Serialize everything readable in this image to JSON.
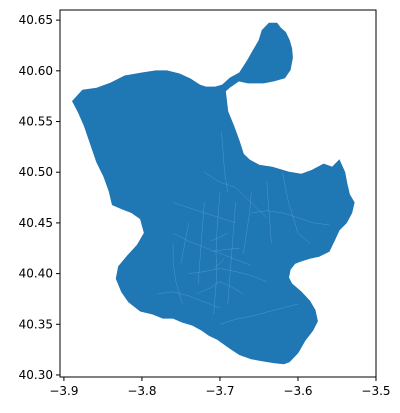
{
  "chart_data": {
    "type": "map",
    "title": "",
    "xlabel": "",
    "ylabel": "",
    "xlim": [
      -3.905,
      -3.5
    ],
    "ylim": [
      40.298,
      40.66
    ],
    "x_ticks": [
      "-3.9",
      "-3.8",
      "-3.7",
      "-3.6",
      "-3.5"
    ],
    "y_ticks": [
      "40.30",
      "40.35",
      "40.40",
      "40.45",
      "40.50",
      "40.55",
      "40.60",
      "40.65"
    ],
    "fill_color": "#1f77b4",
    "boundary_color": "#5aa0d0",
    "grid": false,
    "legend": "none",
    "outline": [
      [
        -3.889,
        40.57
      ],
      [
        -3.876,
        40.581
      ],
      [
        -3.858,
        40.583
      ],
      [
        -3.84,
        40.588
      ],
      [
        -3.822,
        40.595
      ],
      [
        -3.8,
        40.598
      ],
      [
        -3.782,
        40.6
      ],
      [
        -3.768,
        40.6
      ],
      [
        -3.752,
        40.597
      ],
      [
        -3.738,
        40.592
      ],
      [
        -3.726,
        40.586
      ],
      [
        -3.718,
        40.584
      ],
      [
        -3.706,
        40.584
      ],
      [
        -3.697,
        40.586
      ],
      [
        -3.687,
        40.593
      ],
      [
        -3.675,
        40.598
      ],
      [
        -3.665,
        40.61
      ],
      [
        -3.656,
        40.622
      ],
      [
        -3.65,
        40.63
      ],
      [
        -3.646,
        40.64
      ],
      [
        -3.637,
        40.647
      ],
      [
        -3.627,
        40.647
      ],
      [
        -3.622,
        40.642
      ],
      [
        -3.616,
        40.638
      ],
      [
        -3.611,
        40.63
      ],
      [
        -3.608,
        40.622
      ],
      [
        -3.607,
        40.613
      ],
      [
        -3.61,
        40.601
      ],
      [
        -3.617,
        40.593
      ],
      [
        -3.631,
        40.59
      ],
      [
        -3.644,
        40.588
      ],
      [
        -3.664,
        40.588
      ],
      [
        -3.676,
        40.59
      ],
      [
        -3.687,
        40.584
      ],
      [
        -3.693,
        40.58
      ],
      [
        -3.69,
        40.56
      ],
      [
        -3.682,
        40.545
      ],
      [
        -3.675,
        40.53
      ],
      [
        -3.67,
        40.518
      ],
      [
        -3.662,
        40.512
      ],
      [
        -3.65,
        40.507
      ],
      [
        -3.633,
        40.505
      ],
      [
        -3.611,
        40.5
      ],
      [
        -3.596,
        40.498
      ],
      [
        -3.582,
        40.502
      ],
      [
        -3.567,
        40.508
      ],
      [
        -3.556,
        40.505
      ],
      [
        -3.547,
        40.512
      ],
      [
        -3.54,
        40.5
      ],
      [
        -3.537,
        40.488
      ],
      [
        -3.534,
        40.478
      ],
      [
        -3.528,
        40.47
      ],
      [
        -3.531,
        40.46
      ],
      [
        -3.538,
        40.45
      ],
      [
        -3.547,
        40.443
      ],
      [
        -3.553,
        40.433
      ],
      [
        -3.56,
        40.422
      ],
      [
        -3.573,
        40.417
      ],
      [
        -3.585,
        40.415
      ],
      [
        -3.597,
        40.412
      ],
      [
        -3.604,
        40.41
      ],
      [
        -3.61,
        40.404
      ],
      [
        -3.612,
        40.396
      ],
      [
        -3.608,
        40.39
      ],
      [
        -3.596,
        40.382
      ],
      [
        -3.585,
        40.373
      ],
      [
        -3.578,
        40.364
      ],
      [
        -3.575,
        40.353
      ],
      [
        -3.581,
        40.344
      ],
      [
        -3.591,
        40.334
      ],
      [
        -3.6,
        40.322
      ],
      [
        -3.611,
        40.313
      ],
      [
        -3.618,
        40.311
      ],
      [
        -3.63,
        40.312
      ],
      [
        -3.646,
        40.314
      ],
      [
        -3.66,
        40.316
      ],
      [
        -3.675,
        40.32
      ],
      [
        -3.685,
        40.325
      ],
      [
        -3.694,
        40.33
      ],
      [
        -3.703,
        40.335
      ],
      [
        -3.714,
        40.339
      ],
      [
        -3.723,
        40.344
      ],
      [
        -3.735,
        40.349
      ],
      [
        -3.748,
        40.352
      ],
      [
        -3.76,
        40.356
      ],
      [
        -3.773,
        40.356
      ],
      [
        -3.786,
        40.36
      ],
      [
        -3.802,
        40.363
      ],
      [
        -3.817,
        40.372
      ],
      [
        -3.826,
        40.382
      ],
      [
        -3.833,
        40.395
      ],
      [
        -3.83,
        40.407
      ],
      [
        -3.818,
        40.418
      ],
      [
        -3.806,
        40.428
      ],
      [
        -3.797,
        40.44
      ],
      [
        -3.802,
        40.454
      ],
      [
        -3.813,
        40.46
      ],
      [
        -3.826,
        40.464
      ],
      [
        -3.838,
        40.468
      ],
      [
        -3.842,
        40.481
      ],
      [
        -3.849,
        40.496
      ],
      [
        -3.858,
        40.51
      ],
      [
        -3.866,
        40.528
      ],
      [
        -3.874,
        40.546
      ],
      [
        -3.882,
        40.56
      ],
      [
        -3.889,
        40.57
      ]
    ],
    "district_lines": [
      [
        [
          -3.72,
          40.5
        ],
        [
          -3.7,
          40.49
        ],
        [
          -3.68,
          40.485
        ],
        [
          -3.66,
          40.47
        ],
        [
          -3.64,
          40.455
        ]
      ],
      [
        [
          -3.76,
          40.47
        ],
        [
          -3.74,
          40.465
        ],
        [
          -3.72,
          40.46
        ],
        [
          -3.7,
          40.455
        ],
        [
          -3.68,
          40.45
        ]
      ],
      [
        [
          -3.76,
          40.44
        ],
        [
          -3.74,
          40.432
        ],
        [
          -3.72,
          40.426
        ],
        [
          -3.7,
          40.42
        ],
        [
          -3.68,
          40.414
        ],
        [
          -3.66,
          40.408
        ]
      ],
      [
        [
          -3.74,
          40.4
        ],
        [
          -3.72,
          40.402
        ],
        [
          -3.7,
          40.405
        ],
        [
          -3.68,
          40.402
        ],
        [
          -3.66,
          40.398
        ],
        [
          -3.64,
          40.392
        ]
      ],
      [
        [
          -3.73,
          40.38
        ],
        [
          -3.712,
          40.386
        ],
        [
          -3.7,
          40.392
        ],
        [
          -3.688,
          40.388
        ],
        [
          -3.67,
          40.38
        ]
      ],
      [
        [
          -3.7,
          40.48
        ],
        [
          -3.702,
          40.46
        ],
        [
          -3.704,
          40.44
        ],
        [
          -3.705,
          40.42
        ],
        [
          -3.704,
          40.4
        ],
        [
          -3.706,
          40.38
        ],
        [
          -3.708,
          40.36
        ]
      ],
      [
        [
          -3.68,
          40.47
        ],
        [
          -3.682,
          40.45
        ],
        [
          -3.684,
          40.43
        ],
        [
          -3.686,
          40.41
        ],
        [
          -3.688,
          40.39
        ],
        [
          -3.69,
          40.37
        ]
      ],
      [
        [
          -3.72,
          40.47
        ],
        [
          -3.722,
          40.45
        ],
        [
          -3.724,
          40.43
        ],
        [
          -3.726,
          40.41
        ],
        [
          -3.728,
          40.39
        ]
      ],
      [
        [
          -3.66,
          40.48
        ],
        [
          -3.662,
          40.46
        ],
        [
          -3.666,
          40.44
        ],
        [
          -3.67,
          40.42
        ]
      ],
      [
        [
          -3.64,
          40.49
        ],
        [
          -3.638,
          40.47
        ],
        [
          -3.636,
          40.45
        ],
        [
          -3.634,
          40.43
        ]
      ],
      [
        [
          -3.62,
          40.5
        ],
        [
          -3.612,
          40.47
        ],
        [
          -3.6,
          40.44
        ],
        [
          -3.585,
          40.43
        ]
      ],
      [
        [
          -3.76,
          40.43
        ],
        [
          -3.76,
          40.41
        ],
        [
          -3.756,
          40.39
        ],
        [
          -3.748,
          40.37
        ]
      ],
      [
        [
          -3.78,
          40.38
        ],
        [
          -3.76,
          40.382
        ],
        [
          -3.74,
          40.378
        ],
        [
          -3.72,
          40.372
        ],
        [
          -3.7,
          40.366
        ]
      ],
      [
        [
          -3.698,
          40.54
        ],
        [
          -3.696,
          40.52
        ],
        [
          -3.694,
          40.5
        ],
        [
          -3.69,
          40.48
        ]
      ],
      [
        [
          -3.7,
          40.35
        ],
        [
          -3.68,
          40.355
        ],
        [
          -3.66,
          40.358
        ],
        [
          -3.64,
          40.362
        ],
        [
          -3.62,
          40.366
        ],
        [
          -3.6,
          40.37
        ]
      ],
      [
        [
          -3.66,
          40.46
        ],
        [
          -3.64,
          40.462
        ],
        [
          -3.62,
          40.46
        ],
        [
          -3.6,
          40.455
        ],
        [
          -3.58,
          40.45
        ],
        [
          -3.56,
          40.448
        ]
      ],
      [
        [
          -3.74,
          40.45
        ],
        [
          -3.745,
          40.43
        ],
        [
          -3.75,
          40.41
        ]
      ],
      [
        [
          -3.69,
          40.44
        ],
        [
          -3.7,
          40.436
        ],
        [
          -3.712,
          40.432
        ]
      ],
      [
        [
          -3.675,
          40.425
        ],
        [
          -3.69,
          40.424
        ],
        [
          -3.71,
          40.422
        ]
      ],
      [
        [
          -3.695,
          40.415
        ],
        [
          -3.7,
          40.41
        ],
        [
          -3.708,
          40.405
        ]
      ]
    ]
  }
}
